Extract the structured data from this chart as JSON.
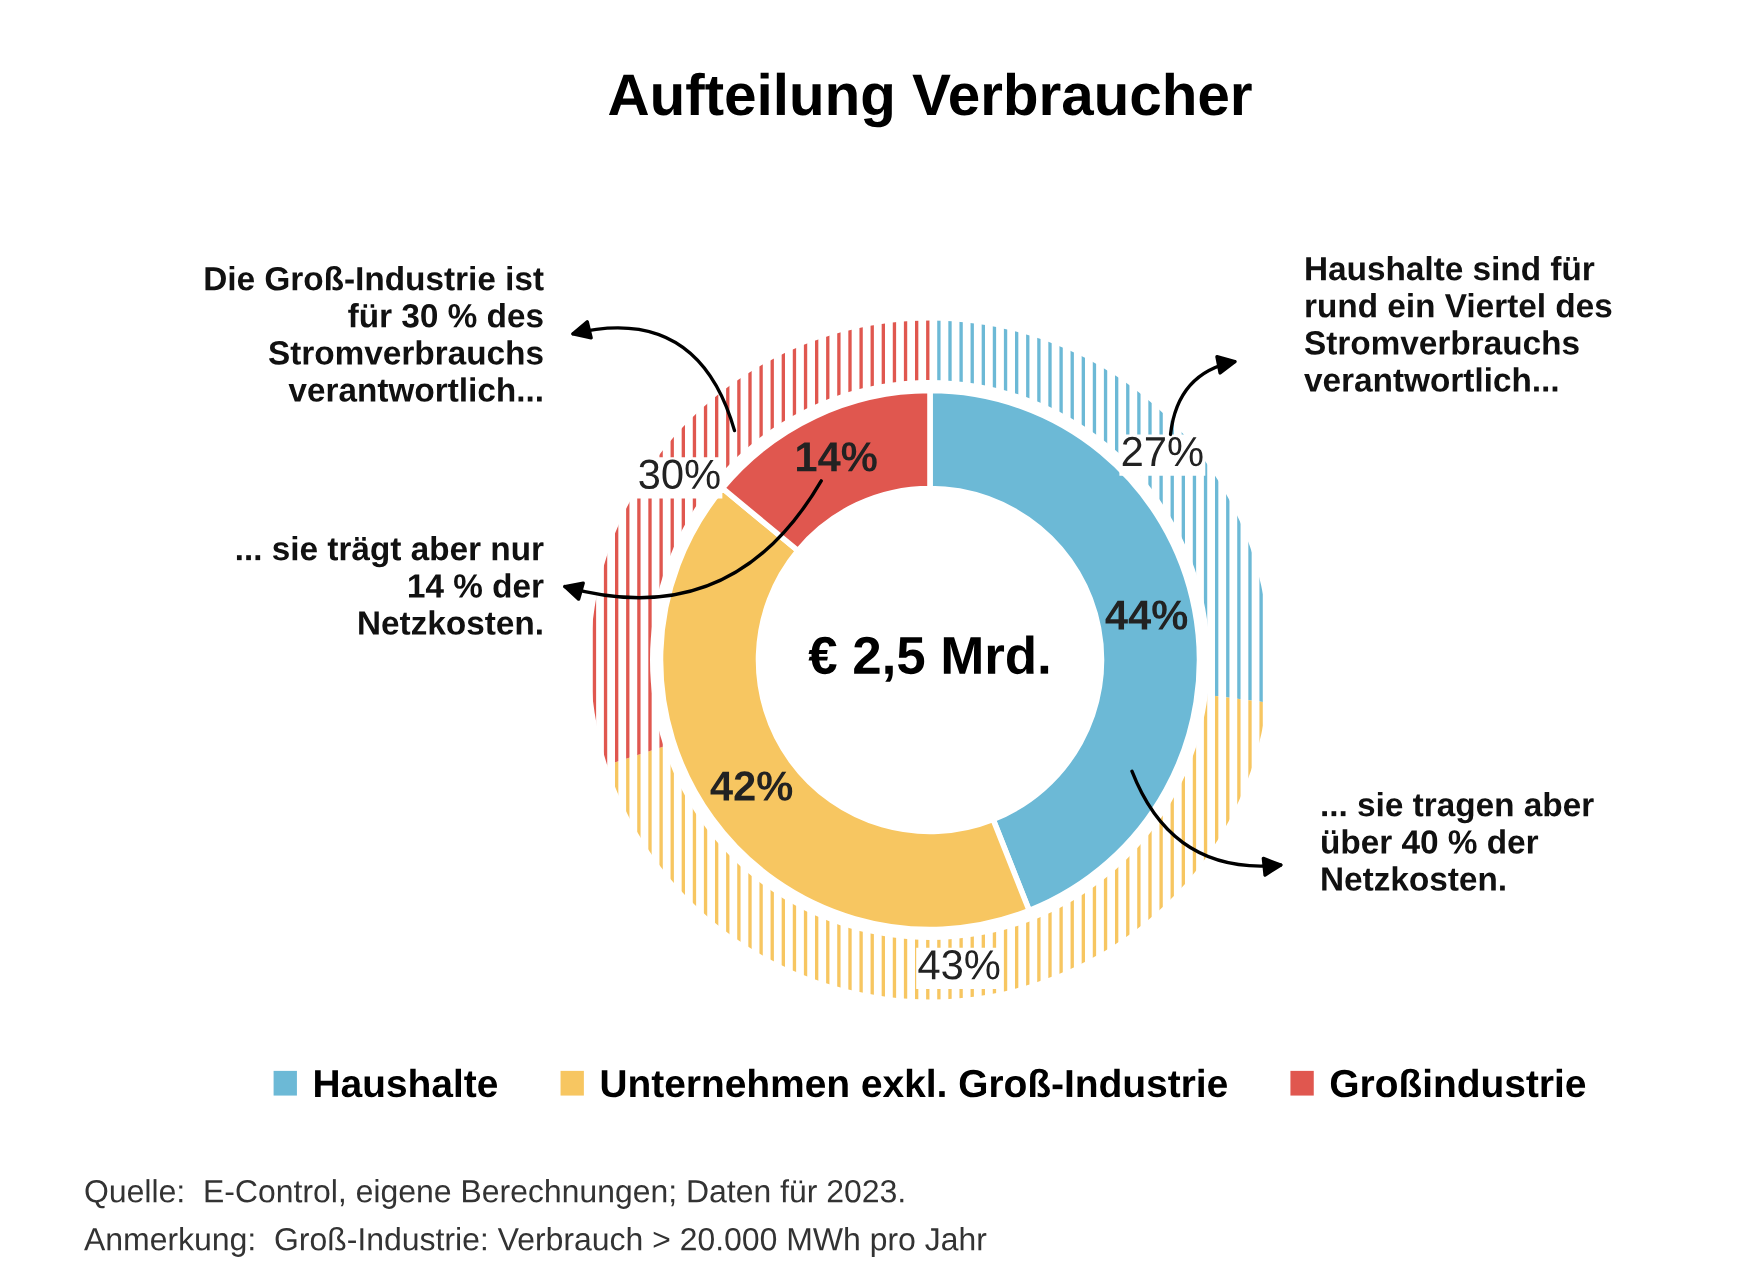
{
  "chart_data": {
    "type": "donut",
    "title": "Aufteilung Verbraucher",
    "categories": [
      "Haushalte",
      "Unternehmen exkl. Groß-Industrie",
      "Großindustrie"
    ],
    "colors": [
      "#6cb9d6",
      "#f7c661",
      "#e0574f"
    ],
    "series": [
      {
        "values": [
          27,
          43,
          30
        ],
        "value_labels": [
          "27%",
          "43%",
          "30%"
        ]
      },
      {
        "values": [
          44,
          42,
          14
        ],
        "value_labels": [
          "44%",
          "42%",
          "14%"
        ]
      }
    ],
    "legend": "bottom",
    "annotations": [
      "€ 2,5 Mrd.",
      "Die Groß-Industrie ist\nfür 30 % des\nStromverbrauchs\nverantwortlich...",
      "... sie trägt aber nur\n14 % der\nNetzkosten.",
      "Haushalte sind für\nrund ein Viertel des\nStromverbrauchs\nverantwortlich...",
      "... sie tragen aber\nüber 40 % der\nNetzkosten.",
      "Quelle:  E-Control, eigene Berechnungen; Daten für 2023.",
      "Anmerkung:  Groß-Industrie: Verbrauch > 20.000 MWh pro Jahr"
    ]
  }
}
